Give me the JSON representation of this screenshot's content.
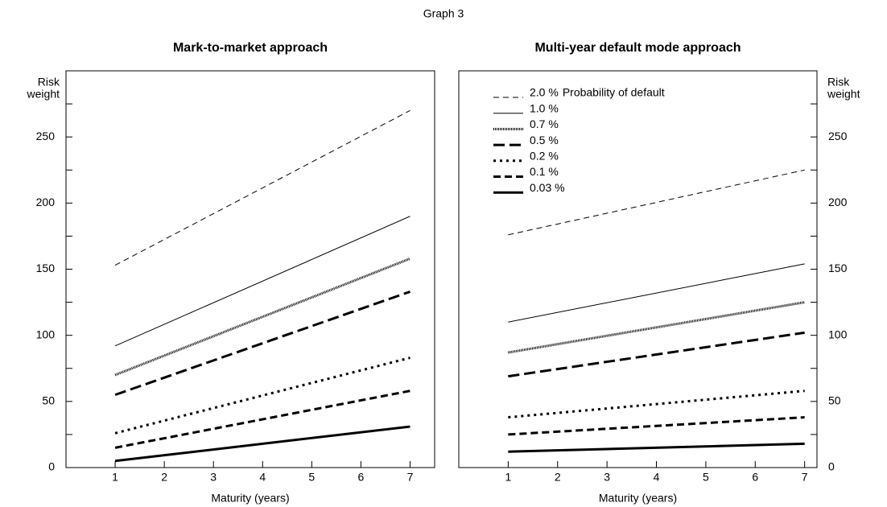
{
  "figure_title": "Graph 3",
  "chart_data": [
    {
      "type": "line",
      "title": "Mark-to-market approach",
      "x_label": "Maturity (years)",
      "y_label": [
        "Risk",
        "weight"
      ],
      "y_axis_side": "left",
      "x": [
        1,
        7
      ],
      "xlim": [
        0,
        7.5
      ],
      "xticks": [
        1,
        2,
        3,
        4,
        5,
        6,
        7
      ],
      "ylim": [
        0,
        300
      ],
      "yticks": [
        0,
        50,
        100,
        150,
        200,
        250
      ],
      "minor_yticks": [
        25,
        75,
        125,
        175,
        225,
        275
      ],
      "series": [
        {
          "color": "#000",
          "width": 1,
          "dash": "7 5",
          "values": [
            153,
            270
          ]
        },
        {
          "color": "#000",
          "width": 1,
          "dash": "none",
          "values": [
            92,
            190
          ]
        },
        {
          "color": "#000",
          "width": 3,
          "dash": "1 1",
          "values": [
            70,
            158
          ]
        },
        {
          "color": "#000",
          "width": 3,
          "dash": "14 6",
          "values": [
            55,
            133
          ]
        },
        {
          "color": "#000",
          "width": 3,
          "dash": "3 5",
          "values": [
            26,
            83
          ]
        },
        {
          "color": "#000",
          "width": 3,
          "dash": "9 5",
          "values": [
            15,
            58
          ]
        },
        {
          "color": "#000",
          "width": 3,
          "dash": "none",
          "values": [
            5,
            31
          ]
        }
      ]
    },
    {
      "type": "line",
      "title": "Multi-year default mode approach",
      "x_label": "Maturity (years)",
      "y_label": [
        "Risk",
        "weight"
      ],
      "y_axis_side": "right",
      "legend_note": "Probability of default",
      "legend": "top-left",
      "x": [
        1,
        7
      ],
      "xlim": [
        0,
        7.25
      ],
      "xticks": [
        1,
        2,
        3,
        4,
        5,
        6,
        7
      ],
      "ylim": [
        0,
        300
      ],
      "yticks": [
        0,
        50,
        100,
        150,
        200,
        250
      ],
      "minor_yticks": [
        25,
        75,
        125,
        175,
        225,
        275
      ],
      "series": [
        {
          "name": "2.0 %",
          "color": "#000",
          "width": 1,
          "dash": "7 5",
          "values": [
            176,
            225
          ]
        },
        {
          "name": "1.0 %",
          "color": "#000",
          "width": 1,
          "dash": "none",
          "values": [
            110,
            154
          ]
        },
        {
          "name": "0.7 %",
          "color": "#000",
          "width": 3,
          "dash": "1 1",
          "values": [
            87,
            125
          ]
        },
        {
          "name": "0.5 %",
          "color": "#000",
          "width": 3,
          "dash": "14 6",
          "values": [
            69,
            102
          ]
        },
        {
          "name": "0.2 %",
          "color": "#000",
          "width": 3,
          "dash": "3 5",
          "values": [
            38,
            58
          ]
        },
        {
          "name": "0.1 %",
          "color": "#000",
          "width": 3,
          "dash": "9 5",
          "values": [
            25,
            38
          ]
        },
        {
          "name": "0.03 %",
          "color": "#000",
          "width": 3,
          "dash": "none",
          "values": [
            12,
            18
          ]
        }
      ]
    }
  ]
}
